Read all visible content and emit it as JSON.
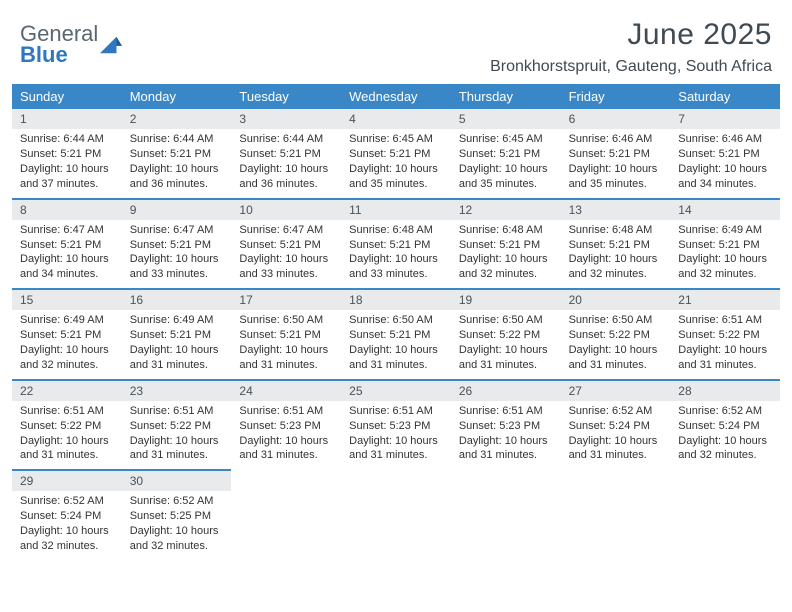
{
  "brand": {
    "name1": "General",
    "name2": "Blue"
  },
  "title": "June 2025",
  "subtitle": "Bronkhorstspruit, Gauteng, South Africa",
  "colors": {
    "header_bg": "#3a87c8",
    "daybar_bg": "#e9eaec",
    "text": "#333333"
  },
  "dow": [
    "Sunday",
    "Monday",
    "Tuesday",
    "Wednesday",
    "Thursday",
    "Friday",
    "Saturday"
  ],
  "weeks": [
    [
      {
        "n": "1",
        "sr": "Sunrise: 6:44 AM",
        "ss": "Sunset: 5:21 PM",
        "dl": "Daylight: 10 hours and 37 minutes."
      },
      {
        "n": "2",
        "sr": "Sunrise: 6:44 AM",
        "ss": "Sunset: 5:21 PM",
        "dl": "Daylight: 10 hours and 36 minutes."
      },
      {
        "n": "3",
        "sr": "Sunrise: 6:44 AM",
        "ss": "Sunset: 5:21 PM",
        "dl": "Daylight: 10 hours and 36 minutes."
      },
      {
        "n": "4",
        "sr": "Sunrise: 6:45 AM",
        "ss": "Sunset: 5:21 PM",
        "dl": "Daylight: 10 hours and 35 minutes."
      },
      {
        "n": "5",
        "sr": "Sunrise: 6:45 AM",
        "ss": "Sunset: 5:21 PM",
        "dl": "Daylight: 10 hours and 35 minutes."
      },
      {
        "n": "6",
        "sr": "Sunrise: 6:46 AM",
        "ss": "Sunset: 5:21 PM",
        "dl": "Daylight: 10 hours and 35 minutes."
      },
      {
        "n": "7",
        "sr": "Sunrise: 6:46 AM",
        "ss": "Sunset: 5:21 PM",
        "dl": "Daylight: 10 hours and 34 minutes."
      }
    ],
    [
      {
        "n": "8",
        "sr": "Sunrise: 6:47 AM",
        "ss": "Sunset: 5:21 PM",
        "dl": "Daylight: 10 hours and 34 minutes."
      },
      {
        "n": "9",
        "sr": "Sunrise: 6:47 AM",
        "ss": "Sunset: 5:21 PM",
        "dl": "Daylight: 10 hours and 33 minutes."
      },
      {
        "n": "10",
        "sr": "Sunrise: 6:47 AM",
        "ss": "Sunset: 5:21 PM",
        "dl": "Daylight: 10 hours and 33 minutes."
      },
      {
        "n": "11",
        "sr": "Sunrise: 6:48 AM",
        "ss": "Sunset: 5:21 PM",
        "dl": "Daylight: 10 hours and 33 minutes."
      },
      {
        "n": "12",
        "sr": "Sunrise: 6:48 AM",
        "ss": "Sunset: 5:21 PM",
        "dl": "Daylight: 10 hours and 32 minutes."
      },
      {
        "n": "13",
        "sr": "Sunrise: 6:48 AM",
        "ss": "Sunset: 5:21 PM",
        "dl": "Daylight: 10 hours and 32 minutes."
      },
      {
        "n": "14",
        "sr": "Sunrise: 6:49 AM",
        "ss": "Sunset: 5:21 PM",
        "dl": "Daylight: 10 hours and 32 minutes."
      }
    ],
    [
      {
        "n": "15",
        "sr": "Sunrise: 6:49 AM",
        "ss": "Sunset: 5:21 PM",
        "dl": "Daylight: 10 hours and 32 minutes."
      },
      {
        "n": "16",
        "sr": "Sunrise: 6:49 AM",
        "ss": "Sunset: 5:21 PM",
        "dl": "Daylight: 10 hours and 31 minutes."
      },
      {
        "n": "17",
        "sr": "Sunrise: 6:50 AM",
        "ss": "Sunset: 5:21 PM",
        "dl": "Daylight: 10 hours and 31 minutes."
      },
      {
        "n": "18",
        "sr": "Sunrise: 6:50 AM",
        "ss": "Sunset: 5:21 PM",
        "dl": "Daylight: 10 hours and 31 minutes."
      },
      {
        "n": "19",
        "sr": "Sunrise: 6:50 AM",
        "ss": "Sunset: 5:22 PM",
        "dl": "Daylight: 10 hours and 31 minutes."
      },
      {
        "n": "20",
        "sr": "Sunrise: 6:50 AM",
        "ss": "Sunset: 5:22 PM",
        "dl": "Daylight: 10 hours and 31 minutes."
      },
      {
        "n": "21",
        "sr": "Sunrise: 6:51 AM",
        "ss": "Sunset: 5:22 PM",
        "dl": "Daylight: 10 hours and 31 minutes."
      }
    ],
    [
      {
        "n": "22",
        "sr": "Sunrise: 6:51 AM",
        "ss": "Sunset: 5:22 PM",
        "dl": "Daylight: 10 hours and 31 minutes."
      },
      {
        "n": "23",
        "sr": "Sunrise: 6:51 AM",
        "ss": "Sunset: 5:22 PM",
        "dl": "Daylight: 10 hours and 31 minutes."
      },
      {
        "n": "24",
        "sr": "Sunrise: 6:51 AM",
        "ss": "Sunset: 5:23 PM",
        "dl": "Daylight: 10 hours and 31 minutes."
      },
      {
        "n": "25",
        "sr": "Sunrise: 6:51 AM",
        "ss": "Sunset: 5:23 PM",
        "dl": "Daylight: 10 hours and 31 minutes."
      },
      {
        "n": "26",
        "sr": "Sunrise: 6:51 AM",
        "ss": "Sunset: 5:23 PM",
        "dl": "Daylight: 10 hours and 31 minutes."
      },
      {
        "n": "27",
        "sr": "Sunrise: 6:52 AM",
        "ss": "Sunset: 5:24 PM",
        "dl": "Daylight: 10 hours and 31 minutes."
      },
      {
        "n": "28",
        "sr": "Sunrise: 6:52 AM",
        "ss": "Sunset: 5:24 PM",
        "dl": "Daylight: 10 hours and 32 minutes."
      }
    ],
    [
      {
        "n": "29",
        "sr": "Sunrise: 6:52 AM",
        "ss": "Sunset: 5:24 PM",
        "dl": "Daylight: 10 hours and 32 minutes."
      },
      {
        "n": "30",
        "sr": "Sunrise: 6:52 AM",
        "ss": "Sunset: 5:25 PM",
        "dl": "Daylight: 10 hours and 32 minutes."
      },
      null,
      null,
      null,
      null,
      null
    ]
  ]
}
